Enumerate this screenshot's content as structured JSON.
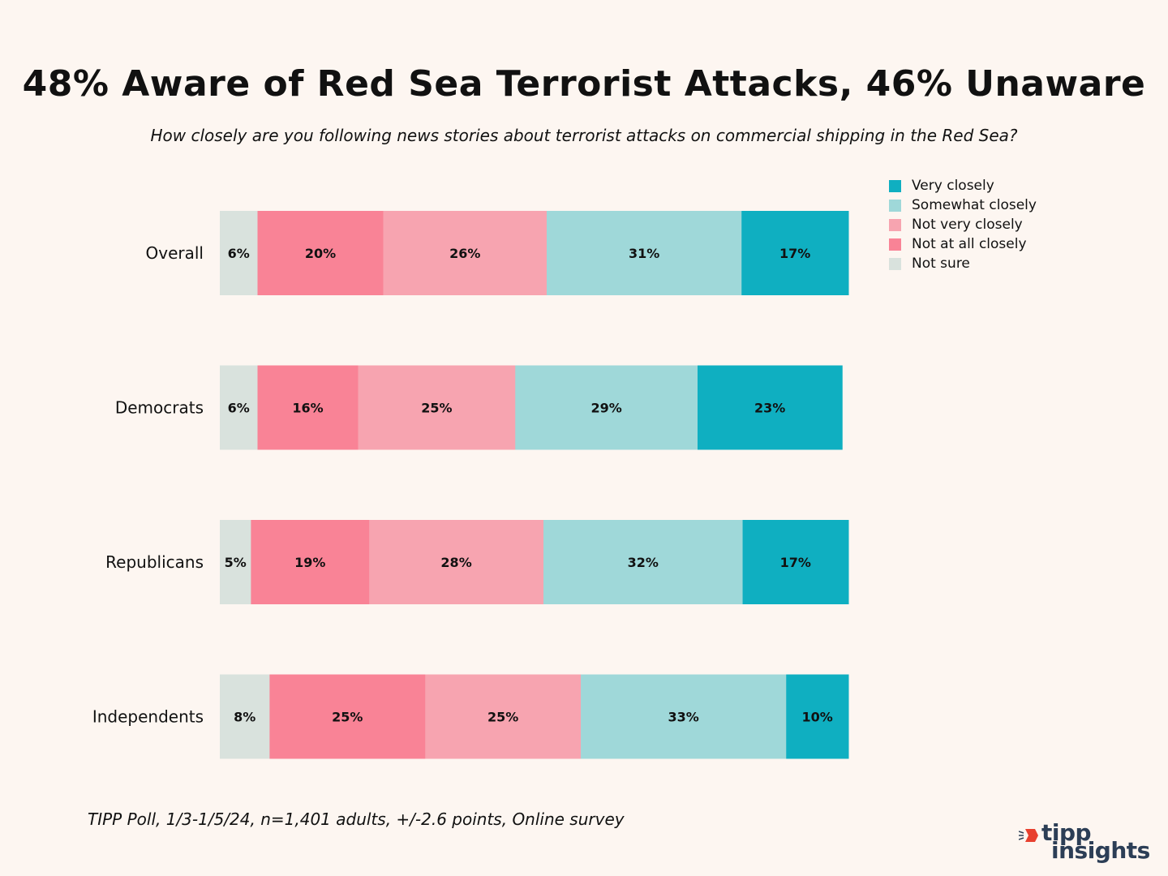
{
  "chart_data": {
    "type": "bar",
    "orientation": "horizontal-stacked-100",
    "title": "48% Aware of Red Sea Terrorist Attacks, 46% Unaware",
    "subtitle": "How closely are you following news stories about terrorist attacks on commercial shipping in the Red Sea?",
    "categories": [
      "Overall",
      "Democrats",
      "Republicans",
      "Independents"
    ],
    "series": [
      {
        "name": "Not sure",
        "color": "#d9e2dd",
        "values": [
          6,
          6,
          5,
          8
        ]
      },
      {
        "name": "Not at all closely",
        "color": "#f98396",
        "values": [
          20,
          16,
          19,
          25
        ]
      },
      {
        "name": "Not very closely",
        "color": "#f7a4b0",
        "values": [
          26,
          25,
          28,
          25
        ]
      },
      {
        "name": "Somewhat closely",
        "color": "#9fd8d9",
        "values": [
          31,
          29,
          32,
          33
        ]
      },
      {
        "name": "Very closely",
        "color": "#0fafc1",
        "values": [
          17,
          23,
          17,
          10
        ]
      }
    ],
    "legend_order": [
      "Very closely",
      "Somewhat closely",
      "Not very closely",
      "Not at all closely",
      "Not sure"
    ],
    "value_suffix": "%",
    "xlim": [
      0,
      100
    ],
    "legend_position": "top-right",
    "grid": false
  },
  "footnote": "TIPP Poll, 1/3-1/5/24, n=1,401 adults, +/-2.6 points, Online survey",
  "logo": {
    "line1": "tipp",
    "line2": "insights",
    "accent_color": "#e8402f",
    "text_color": "#2c3e56"
  }
}
